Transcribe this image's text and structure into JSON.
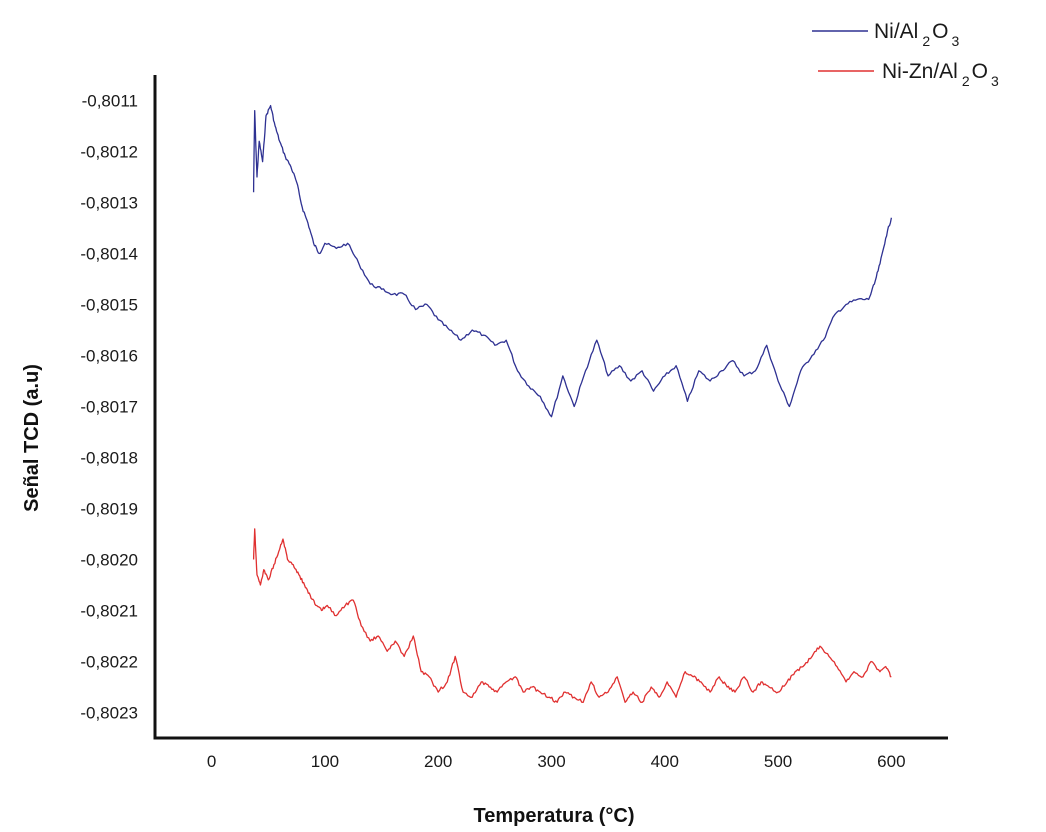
{
  "chart_data": {
    "type": "line",
    "xlabel": "Temperatura (°C)",
    "ylabel": "Señal TCD (a.u)",
    "xlim": [
      -50,
      650
    ],
    "ylim": [
      -0.80235,
      -0.80105
    ],
    "xticks": [
      0,
      100,
      200,
      300,
      400,
      500,
      600
    ],
    "xtick_labels": [
      "0",
      "100",
      "200",
      "300",
      "400",
      "500",
      "600"
    ],
    "yticks": [
      -0.8011,
      -0.8012,
      -0.8013,
      -0.8014,
      -0.8015,
      -0.8016,
      -0.8017,
      -0.8018,
      -0.8019,
      -0.802,
      -0.8021,
      -0.8022,
      -0.8023
    ],
    "ytick_labels": [
      "-0,8011",
      "-0,8012",
      "-0,8013",
      "-0,8014",
      "-0,8015",
      "-0,8016",
      "-0,8017",
      "-0,8018",
      "-0,8019",
      "-0,8020",
      "-0,8021",
      "-0,8022",
      "-0,8023"
    ],
    "grid": false,
    "legend_position": "top-right",
    "series": [
      {
        "name": "Ni/Al2O3",
        "legend_main": "Ni/Al",
        "legend_sub1": "2",
        "legend_mid": "O",
        "legend_sub2": "3",
        "color": "#2e3192",
        "x": [
          37,
          38,
          40,
          42,
          45,
          48,
          52,
          56,
          60,
          65,
          70,
          75,
          80,
          85,
          90,
          95,
          100,
          110,
          120,
          130,
          140,
          150,
          160,
          170,
          180,
          190,
          200,
          210,
          220,
          230,
          240,
          250,
          260,
          270,
          280,
          290,
          300,
          310,
          320,
          330,
          340,
          350,
          360,
          370,
          380,
          390,
          400,
          410,
          420,
          430,
          440,
          450,
          460,
          470,
          480,
          490,
          500,
          510,
          520,
          530,
          540,
          550,
          560,
          570,
          580,
          585,
          590,
          595,
          600
        ],
        "y": [
          -0.80128,
          -0.80112,
          -0.80125,
          -0.80118,
          -0.80122,
          -0.80113,
          -0.80111,
          -0.80115,
          -0.80118,
          -0.80121,
          -0.80123,
          -0.80126,
          -0.80131,
          -0.80134,
          -0.80138,
          -0.8014,
          -0.80138,
          -0.80139,
          -0.80138,
          -0.80142,
          -0.80146,
          -0.80147,
          -0.80148,
          -0.80148,
          -0.80151,
          -0.8015,
          -0.80153,
          -0.80155,
          -0.80157,
          -0.80155,
          -0.80156,
          -0.80158,
          -0.80157,
          -0.80163,
          -0.80166,
          -0.80168,
          -0.80172,
          -0.80164,
          -0.8017,
          -0.80163,
          -0.80157,
          -0.80164,
          -0.80162,
          -0.80165,
          -0.80163,
          -0.80167,
          -0.80164,
          -0.80162,
          -0.80169,
          -0.80163,
          -0.80165,
          -0.80163,
          -0.80161,
          -0.80164,
          -0.80163,
          -0.80158,
          -0.80165,
          -0.8017,
          -0.80163,
          -0.8016,
          -0.80157,
          -0.80152,
          -0.8015,
          -0.80149,
          -0.80149,
          -0.80146,
          -0.80142,
          -0.80137,
          -0.80133
        ]
      },
      {
        "name": "Ni-Zn/Al2O3",
        "legend_main": "Ni-Zn/Al",
        "legend_sub1": "2",
        "legend_mid": "O",
        "legend_sub2": "3",
        "color": "#e03030",
        "x": [
          37,
          38,
          40,
          43,
          46,
          50,
          55,
          60,
          63,
          67,
          72,
          77,
          82,
          87,
          92,
          97,
          102,
          110,
          118,
          125,
          132,
          140,
          147,
          155,
          162,
          170,
          178,
          185,
          192,
          200,
          208,
          215,
          222,
          230,
          238,
          245,
          252,
          260,
          268,
          275,
          283,
          290,
          298,
          305,
          312,
          320,
          328,
          335,
          342,
          350,
          358,
          365,
          372,
          380,
          388,
          395,
          402,
          410,
          418,
          425,
          432,
          440,
          448,
          455,
          462,
          470,
          478,
          485,
          492,
          500,
          508,
          515,
          522,
          530,
          537,
          545,
          552,
          560,
          567,
          575,
          582,
          590,
          595,
          600
        ],
        "y": [
          -0.802,
          -0.80194,
          -0.80203,
          -0.80205,
          -0.80202,
          -0.80204,
          -0.80201,
          -0.80198,
          -0.80196,
          -0.802,
          -0.80201,
          -0.80203,
          -0.80205,
          -0.80207,
          -0.80209,
          -0.8021,
          -0.80209,
          -0.80211,
          -0.80209,
          -0.80208,
          -0.80213,
          -0.80216,
          -0.80215,
          -0.80218,
          -0.80216,
          -0.80219,
          -0.80215,
          -0.80222,
          -0.80223,
          -0.80226,
          -0.80224,
          -0.80219,
          -0.80226,
          -0.80227,
          -0.80224,
          -0.80225,
          -0.80226,
          -0.80224,
          -0.80223,
          -0.80226,
          -0.80225,
          -0.80226,
          -0.80227,
          -0.80228,
          -0.80226,
          -0.80227,
          -0.80228,
          -0.80224,
          -0.80227,
          -0.80226,
          -0.80223,
          -0.80228,
          -0.80226,
          -0.80228,
          -0.80225,
          -0.80227,
          -0.80224,
          -0.80227,
          -0.80222,
          -0.80223,
          -0.80224,
          -0.80226,
          -0.80223,
          -0.80225,
          -0.80226,
          -0.80223,
          -0.80226,
          -0.80224,
          -0.80225,
          -0.80226,
          -0.80224,
          -0.80222,
          -0.80221,
          -0.80219,
          -0.80217,
          -0.80219,
          -0.80221,
          -0.80224,
          -0.80222,
          -0.80223,
          -0.8022,
          -0.80222,
          -0.80221,
          -0.80223
        ]
      }
    ]
  }
}
